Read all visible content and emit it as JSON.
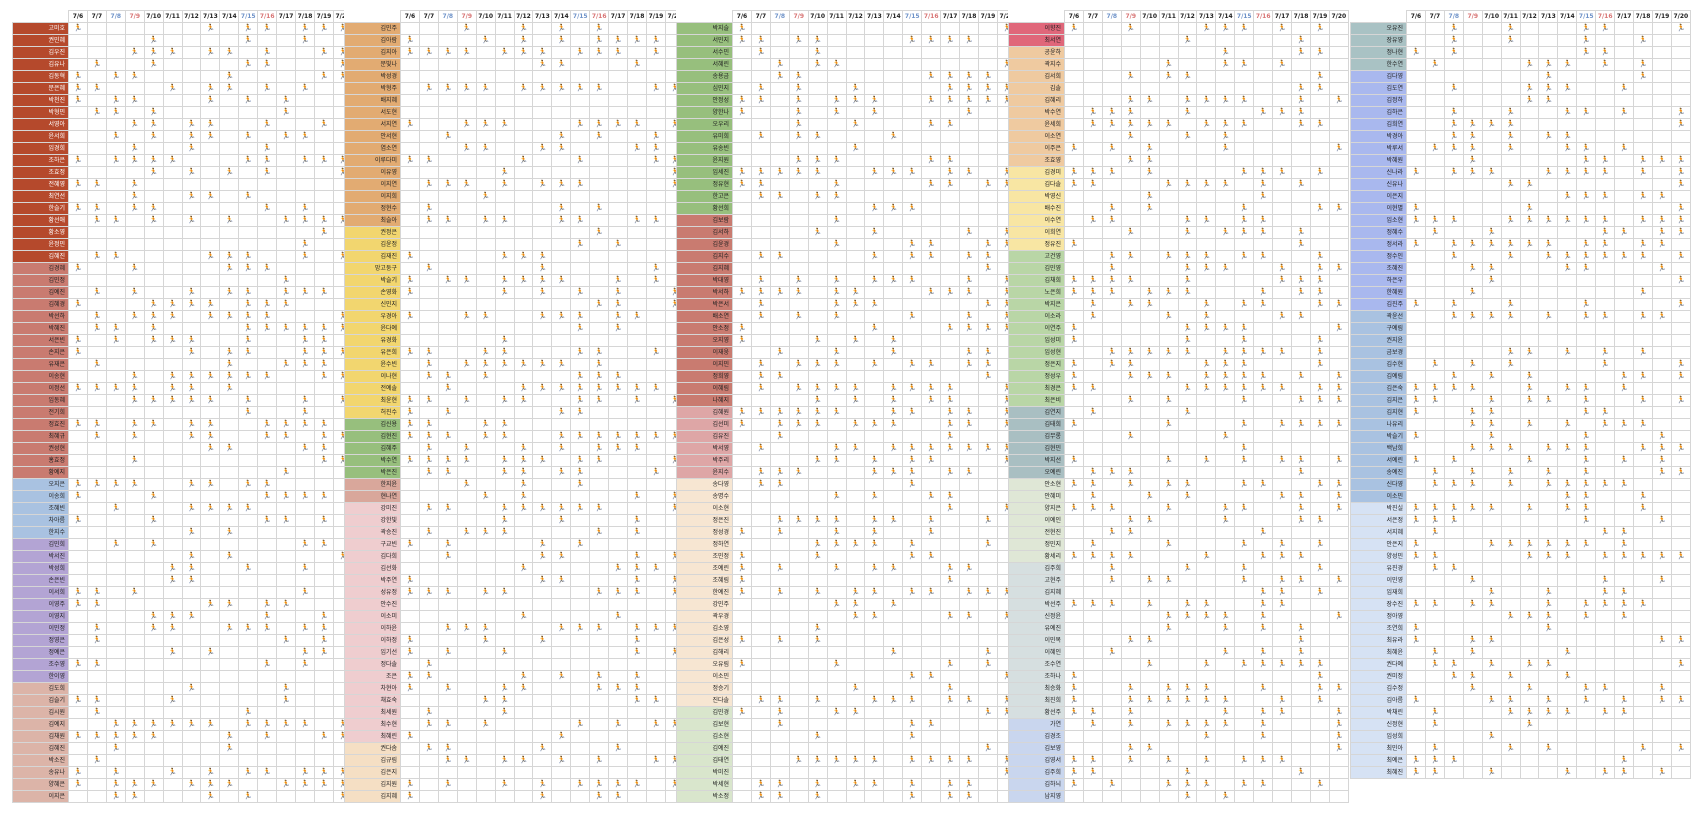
{
  "dates": [
    "7/6",
    "7/7",
    "7/8",
    "7/9",
    "7/10",
    "7/11",
    "7/12",
    "7/13",
    "7/14",
    "7/15",
    "7/16",
    "7/17",
    "7/18",
    "7/19",
    "7/20"
  ],
  "weekend_dates": [
    "7/8",
    "7/15"
  ],
  "holiday_dates": [
    "7/9",
    "7/16"
  ],
  "mark_symbol": "🏃",
  "colors": {
    "header_weekend": "#6f93c9",
    "header_holiday": "#d87575",
    "mark": "#d98a12",
    "grid": "#d6d6d6"
  },
  "groups": [
    {
      "color": "#b5492c",
      "text": "#ffffff",
      "names": [
        "고미호",
        "권민혜",
        "김우진",
        "김유나",
        "김동혁",
        "문은혜",
        "박천진",
        "박형민",
        "서영아",
        "윤서희",
        "임경희",
        "조하은",
        "조효정",
        "전혜영",
        "최연선",
        "한슬기",
        "황선애",
        "황소영",
        "윤정민",
        "김혜진"
      ]
    },
    {
      "color": "#c97b70",
      "text": "#222222",
      "names": [
        "김경혜",
        "김민정",
        "김예진",
        "김혜경",
        "박선하",
        "박혜진",
        "서은빈",
        "손지은",
        "유재은",
        "이송현",
        "이정선",
        "임동혜",
        "전기희",
        "정효진",
        "최혜규",
        "권성현",
        "홍효정",
        "황예지"
      ]
    },
    {
      "color": "#a9c2e1",
      "text": "#222222",
      "names": [
        "오지은",
        "이송희",
        "조혜빈",
        "차아름",
        "한지수"
      ]
    },
    {
      "color": "#b3a4d4",
      "text": "#222222",
      "names": [
        "김민희",
        "박서진",
        "박성희",
        "손은빈",
        "이서희",
        "이영주",
        "이영지",
        "이민정",
        "정영은",
        "정예은",
        "조수영",
        "한이영"
      ]
    },
    {
      "color": "#dcb4a8",
      "text": "#222222",
      "names": [
        "김도희",
        "김슬기",
        "김시원",
        "김예지",
        "김채원",
        "김혜진",
        "박소진",
        "송유나",
        "양혜은",
        "이지은"
      ]
    },
    {
      "color": "#e2ab72",
      "text": "#222222",
      "names": [
        "김민주",
        "김아람",
        "김지아",
        "문빛나",
        "박성경",
        "박형주",
        "배지혜",
        "서도현",
        "서지연",
        "안서현",
        "염소연",
        "이루다미",
        "이유영",
        "이지연",
        "이지희",
        "정현수",
        "최슬아"
      ]
    },
    {
      "color": "#f2d66f",
      "text": "#222222",
      "names": [
        "권정은",
        "김윤정",
        "김재진",
        "망고둥구",
        "박슬기",
        "손영화",
        "신민지",
        "우경아",
        "윤다예",
        "유경화",
        "유은희",
        "윤수빈",
        "이나현",
        "전예솔",
        "최윤현",
        "허진수"
      ]
    },
    {
      "color": "#97bf7d",
      "text": "#222222",
      "names": [
        "김신용",
        "김현진",
        "김혜주",
        "박수연",
        "박은진"
      ]
    },
    {
      "color": "#d9a79b",
      "text": "#222222",
      "names": [
        "한지윤",
        "현나연"
      ]
    },
    {
      "color": "#efcdcf",
      "text": "#222222",
      "names": [
        "강미진",
        "강한빛",
        "곽승진",
        "구교빈",
        "김다희",
        "김선화",
        "박주연",
        "성유정",
        "안수진",
        "이소미",
        "이하윤",
        "이하정",
        "임기선",
        "정다솔",
        "조은",
        "차현아",
        "채효숙",
        "최세원",
        "최수현",
        "최혜린"
      ]
    },
    {
      "color": "#f5dfc4",
      "text": "#222222",
      "names": [
        "권다솜",
        "김규림",
        "김은지",
        "김지원",
        "김지혜"
      ]
    },
    {
      "color": "#97bf7d",
      "text": "#222222",
      "names": [
        "박지슬",
        "서민지",
        "서수민",
        "서혜린",
        "송용금",
        "심민지",
        "안정성",
        "양한나",
        "오우리",
        "유미희",
        "유송빈",
        "윤지원",
        "임세진",
        "정유현",
        "한고은",
        "황선희"
      ]
    },
    {
      "color": "#c97b70",
      "text": "#222222",
      "names": [
        "김보람",
        "김서하",
        "김윤경",
        "김지수",
        "김지혜",
        "박대영",
        "박서하",
        "박은서",
        "배소연",
        "안소정",
        "오지영",
        "이재웅",
        "이지민",
        "정희영",
        "이혜림",
        "나혜지"
      ]
    },
    {
      "color": "#dea6a6",
      "text": "#222222",
      "names": [
        "김혜원",
        "김선미",
        "김유진",
        "박서영",
        "박주리",
        "윤지수"
      ]
    },
    {
      "color": "#f7e6d2",
      "text": "#222222",
      "names": [
        "송다영",
        "송명수",
        "이소현",
        "정은진",
        "정성경",
        "정하연",
        "조민정",
        "조예린",
        "조혜림",
        "한예진",
        "강민주",
        "곽우경",
        "김소영",
        "김은성",
        "김해리",
        "오유림",
        "이소민",
        "정승기",
        "진다솔"
      ]
    },
    {
      "color": "#d9e6cc",
      "text": "#222222",
      "names": [
        "김민경",
        "김보현",
        "김소현",
        "김예진",
        "김태연",
        "박미진",
        "박세현",
        "박소정"
      ]
    },
    {
      "color": "#e0677a",
      "text": "#222222",
      "names": [
        "이향진",
        "최서연"
      ]
    },
    {
      "color": "#efcaa0",
      "text": "#222222",
      "names": [
        "공윤하",
        "곽지수",
        "김서희",
        "김솔",
        "김혜리",
        "박수연",
        "윤세희",
        "이소연",
        "이주은",
        "조효영"
      ]
    },
    {
      "color": "#f8e6a3",
      "text": "#222222",
      "names": [
        "김경미",
        "김다솔",
        "박영신",
        "배수진",
        "이수연",
        "이희연",
        "정유진"
      ]
    },
    {
      "color": "#b9d6a6",
      "text": "#222222",
      "names": [
        "고건영",
        "김민영",
        "김채희",
        "노은희",
        "박지은",
        "이소라",
        "이연주",
        "임성미",
        "임성현",
        "정은지",
        "정성우",
        "최경은",
        "최은비"
      ]
    },
    {
      "color": "#a9bfc2",
      "text": "#222222",
      "names": [
        "김연지",
        "김태희",
        "김무롱",
        "김현민",
        "박지선",
        "오예린"
      ]
    },
    {
      "color": "#dfe7d6",
      "text": "#222222",
      "names": [
        "안소현",
        "안혜미",
        "양지은",
        "이예인",
        "전현진",
        "정민지",
        "황세리"
      ]
    },
    {
      "color": "#d6dfe0",
      "text": "#222222",
      "names": [
        "김주희",
        "고현주",
        "김지혜",
        "박선주",
        "신정윤",
        "유예진",
        "이민복",
        "이혜인",
        "조수연",
        "조하나",
        "최승화",
        "최진희",
        "황선주"
      ]
    },
    {
      "color": "#c9d6ee",
      "text": "#222222",
      "names": [
        "가연",
        "김경조",
        "김보영",
        "김영서",
        "김주희",
        "김하늬",
        "남지영"
      ]
    },
    {
      "color": "#a9c2c4",
      "text": "#222222",
      "names": [
        "오유진",
        "장유영",
        "정나현",
        "한수연"
      ]
    },
    {
      "color": "#a9b8ee",
      "text": "#222222",
      "names": [
        "김다영",
        "김도연",
        "김정하",
        "김하은",
        "김희연",
        "박경아",
        "박루서",
        "박혜원",
        "신나라",
        "신유나",
        "이은지",
        "이현별",
        "임소현",
        "정혜수",
        "정서라",
        "정수인",
        "조혜진",
        "하은우",
        "한혜원",
        "김진주"
      ]
    },
    {
      "color": "#a9c2e1",
      "text": "#222222",
      "names": [
        "곽윤선",
        "구예림",
        "권지윤",
        "금보경",
        "김수현",
        "김예림",
        "김은숙",
        "김지은",
        "김지현",
        "나유리",
        "박슬기",
        "백남희",
        "서예린",
        "송예진",
        "신다영",
        "이소민"
      ]
    },
    {
      "color": "#d6e2f4",
      "text": "#222222",
      "names": [
        "박진실",
        "서은정",
        "서지혜",
        "안은지",
        "양성민",
        "유진경",
        "이민영",
        "임재희",
        "장수진",
        "정아영",
        "조연희",
        "최유라",
        "최혜윤",
        "권다예",
        "권미정",
        "김수정",
        "김아름",
        "박채린",
        "신정현",
        "임성희",
        "최민아",
        "최예은",
        "최혜진"
      ]
    }
  ]
}
